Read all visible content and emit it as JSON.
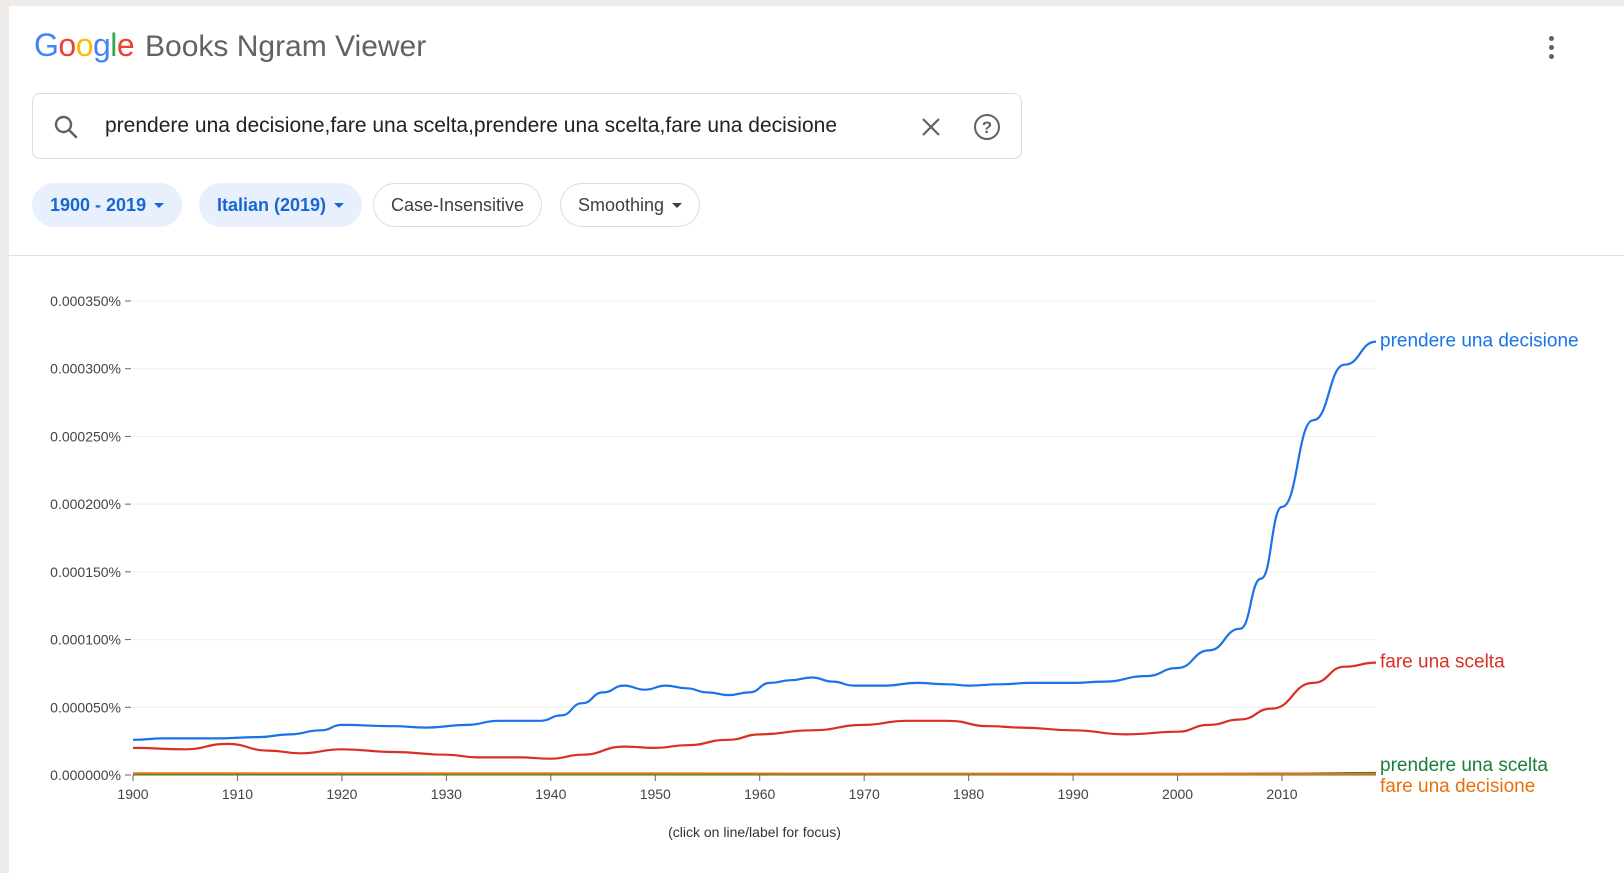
{
  "header": {
    "logo_text": "Google",
    "app_name": "Books Ngram Viewer"
  },
  "search": {
    "query": "prendere una decisione,fare una scelta,prendere una scelta,fare una decisione"
  },
  "filters": {
    "year_range": "1900 - 2019",
    "corpus": "Italian (2019)",
    "case": "Case-Insensitive",
    "smoothing": "Smoothing"
  },
  "icons": {
    "search": "search-icon",
    "clear": "close-icon",
    "help": "help-icon",
    "menu": "more-vert-icon"
  },
  "chart_data": {
    "type": "line",
    "title": "",
    "xlabel": "",
    "ylabel": "",
    "xlim": [
      1900,
      2019
    ],
    "ylim": [
      0,
      0.00035
    ],
    "x_ticks": [
      1900,
      1910,
      1920,
      1930,
      1940,
      1950,
      1960,
      1970,
      1980,
      1990,
      2000,
      2010
    ],
    "x_tick_labels": [
      "1900",
      "1910",
      "1920",
      "1930",
      "1940",
      "1950",
      "1960",
      "1970",
      "1980",
      "1990",
      "2000",
      "2010"
    ],
    "y_ticks": [
      0,
      5e-05,
      0.0001,
      0.00015,
      0.0002,
      0.00025,
      0.0003,
      0.00035
    ],
    "y_tick_labels": [
      "0.000000%",
      "0.000050%",
      "0.000100%",
      "0.000150%",
      "0.000200%",
      "0.000250%",
      "0.000300%",
      "0.000350%"
    ],
    "grid": "horizontal",
    "legend": "line-end labels at right",
    "footnote": "(click on line/label for focus)",
    "series": [
      {
        "name": "prendere una decisione",
        "color": "#1a73e8",
        "x": [
          1900,
          1903,
          1905,
          1908,
          1912,
          1915,
          1918,
          1920,
          1925,
          1928,
          1932,
          1935,
          1939,
          1941,
          1943,
          1945,
          1947,
          1949,
          1951,
          1953,
          1955,
          1957,
          1959,
          1961,
          1963,
          1965,
          1967,
          1969,
          1972,
          1975,
          1978,
          1980,
          1983,
          1986,
          1990,
          1993,
          1997,
          2000,
          2003,
          2006,
          2008,
          2010,
          2013,
          2016,
          2019
        ],
        "values": [
          2.6e-05,
          2.7e-05,
          2.7e-05,
          2.7e-05,
          2.8e-05,
          3e-05,
          3.3e-05,
          3.7e-05,
          3.6e-05,
          3.5e-05,
          3.7e-05,
          4e-05,
          4e-05,
          4.4e-05,
          5.3e-05,
          6.1e-05,
          6.6e-05,
          6.3e-05,
          6.6e-05,
          6.4e-05,
          6.1e-05,
          5.9e-05,
          6.1e-05,
          6.8e-05,
          7e-05,
          7.2e-05,
          6.9e-05,
          6.6e-05,
          6.6e-05,
          6.8e-05,
          6.7e-05,
          6.6e-05,
          6.7e-05,
          6.8e-05,
          6.8e-05,
          6.9e-05,
          7.3e-05,
          7.9e-05,
          9.2e-05,
          0.000108,
          0.000145,
          0.000198,
          0.000262,
          0.000303,
          0.00032
        ]
      },
      {
        "name": "fare una scelta",
        "color": "#d93025",
        "x": [
          1900,
          1905,
          1909,
          1913,
          1916,
          1920,
          1925,
          1930,
          1933,
          1937,
          1940,
          1943,
          1947,
          1950,
          1953,
          1957,
          1960,
          1965,
          1970,
          1974,
          1978,
          1982,
          1985,
          1990,
          1995,
          2000,
          2003,
          2006,
          2009,
          2013,
          2016,
          2019
        ],
        "values": [
          2e-05,
          1.9e-05,
          2.3e-05,
          1.8e-05,
          1.6e-05,
          1.9e-05,
          1.7e-05,
          1.5e-05,
          1.3e-05,
          1.3e-05,
          1.2e-05,
          1.5e-05,
          2.1e-05,
          2e-05,
          2.2e-05,
          2.6e-05,
          3e-05,
          3.3e-05,
          3.7e-05,
          4e-05,
          4e-05,
          3.6e-05,
          3.5e-05,
          3.3e-05,
          3e-05,
          3.2e-05,
          3.7e-05,
          4.1e-05,
          4.9e-05,
          6.8e-05,
          8e-05,
          8.3e-05
        ]
      },
      {
        "name": "prendere una scelta",
        "color": "#188038",
        "x": [
          1900,
          1950,
          2000,
          2010,
          2019
        ],
        "values": [
          5e-07,
          5e-07,
          7e-07,
          1e-06,
          1.5e-06
        ]
      },
      {
        "name": "fare una decisione",
        "color": "#e8710a",
        "x": [
          1900,
          1950,
          2000,
          2019
        ],
        "values": [
          1.2e-06,
          1.1e-06,
          8e-07,
          9e-07
        ]
      }
    ]
  }
}
